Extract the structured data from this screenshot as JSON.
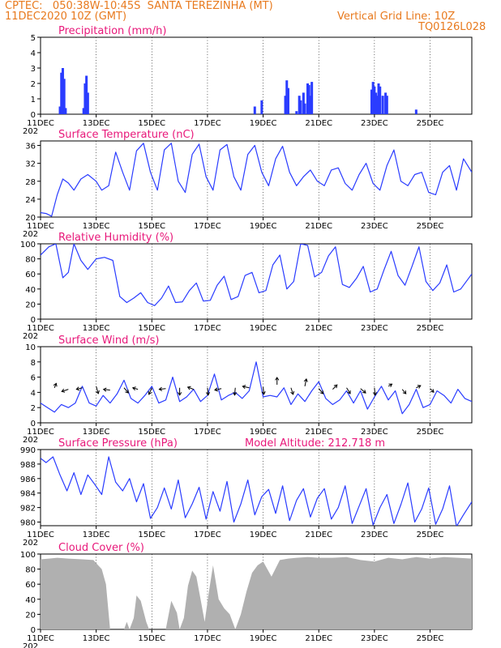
{
  "header": {
    "left_line1": "CPTEC:   050:38W-10:45S  SANTA TEREZINHA (MT)",
    "left_line2": "11DEC2020 10Z (GMT)",
    "right_line1": "Vertical Grid Line: 10Z",
    "right_line2": "TQ0126L028"
  },
  "colors": {
    "header": "#e87a1e",
    "title": "#e8187a",
    "series": "#2a3cff",
    "cloud": "#b0b0b0"
  },
  "x_axis": {
    "start_day": 11,
    "end_day": 26.5,
    "tick_days": [
      11,
      13,
      15,
      17,
      19,
      21,
      23,
      25
    ],
    "tick_labels": [
      "11DEC",
      "13DEC",
      "15DEC",
      "17DEC",
      "19DEC",
      "21DEC",
      "23DEC",
      "25DEC"
    ],
    "year_label": "202"
  },
  "chart_data": [
    {
      "type": "bar",
      "title": "Precipitation (mm/h)",
      "ylim": [
        0,
        5
      ],
      "yticks": [
        0,
        1,
        2,
        3,
        4,
        5
      ],
      "x_units": "day of December 2020",
      "x": [
        11.7,
        11.75,
        11.8,
        11.85,
        11.9,
        12.55,
        12.6,
        12.65,
        12.7,
        18.7,
        18.95,
        19.8,
        19.85,
        19.9,
        20.2,
        20.3,
        20.35,
        20.45,
        20.5,
        20.6,
        20.65,
        20.7,
        20.75,
        22.9,
        22.95,
        23.0,
        23.05,
        23.1,
        23.15,
        23.2,
        23.3,
        23.4,
        23.45,
        24.5
      ],
      "values": [
        0.5,
        2.7,
        3.0,
        2.3,
        0.4,
        0.4,
        2.0,
        2.5,
        1.4,
        0.5,
        0.9,
        1.2,
        2.2,
        1.7,
        0.2,
        1.2,
        0.9,
        1.4,
        0.7,
        2.0,
        1.9,
        1.2,
        2.1,
        1.6,
        2.1,
        1.8,
        1.4,
        1.2,
        2.0,
        1.8,
        1.2,
        1.4,
        1.2,
        0.3
      ]
    },
    {
      "type": "line",
      "title": "Surface Temperature (nC)",
      "ylim": [
        20,
        37
      ],
      "yticks": [
        20,
        24,
        28,
        32,
        36
      ],
      "x_units": "day of December 2020",
      "x": [
        11,
        11.2,
        11.4,
        11.6,
        11.8,
        12.0,
        12.2,
        12.45,
        12.7,
        13.0,
        13.2,
        13.45,
        13.7,
        13.95,
        14.2,
        14.45,
        14.7,
        14.95,
        15.2,
        15.45,
        15.7,
        15.95,
        16.2,
        16.45,
        16.7,
        16.95,
        17.2,
        17.45,
        17.7,
        17.95,
        18.2,
        18.45,
        18.7,
        18.95,
        19.2,
        19.45,
        19.7,
        19.95,
        20.2,
        20.45,
        20.7,
        20.95,
        21.2,
        21.45,
        21.7,
        21.95,
        22.2,
        22.45,
        22.7,
        22.95,
        23.2,
        23.45,
        23.7,
        23.95,
        24.2,
        24.45,
        24.7,
        24.95,
        25.2,
        25.45,
        25.7,
        25.95,
        26.2,
        26.5
      ],
      "values": [
        21,
        20.8,
        20.2,
        25,
        28.5,
        27.6,
        26,
        28.5,
        29.5,
        28,
        26,
        27,
        34.5,
        30,
        26,
        34.8,
        36.5,
        30,
        26,
        35,
        36.5,
        28,
        25.5,
        34,
        36.3,
        29,
        26,
        35,
        36.2,
        29,
        26,
        34,
        36,
        30,
        27,
        33,
        35.8,
        30,
        27,
        29,
        30.5,
        28,
        27,
        30.5,
        31,
        27.5,
        26,
        29.5,
        32,
        27.5,
        26,
        31.5,
        35,
        28,
        27,
        29.5,
        30,
        25.5,
        25,
        30,
        31.5,
        26,
        33,
        30
      ]
    },
    {
      "type": "line",
      "title": "Relative Humidity (%)",
      "ylim": [
        0,
        100
      ],
      "yticks": [
        0,
        20,
        40,
        60,
        80,
        100
      ],
      "x_units": "day of December 2020",
      "x": [
        11,
        11.3,
        11.55,
        11.8,
        12.0,
        12.2,
        12.45,
        12.7,
        13.0,
        13.3,
        13.6,
        13.85,
        14.1,
        14.35,
        14.6,
        14.85,
        15.1,
        15.35,
        15.6,
        15.85,
        16.1,
        16.35,
        16.6,
        16.85,
        17.1,
        17.35,
        17.6,
        17.85,
        18.1,
        18.35,
        18.6,
        18.85,
        19.1,
        19.35,
        19.6,
        19.85,
        20.1,
        20.35,
        20.6,
        20.85,
        21.1,
        21.35,
        21.6,
        21.85,
        22.1,
        22.35,
        22.6,
        22.85,
        23.1,
        23.35,
        23.6,
        23.85,
        24.1,
        24.35,
        24.6,
        24.85,
        25.1,
        25.35,
        25.6,
        25.85,
        26.1,
        26.5
      ],
      "values": [
        85,
        96,
        100,
        55,
        62,
        100,
        78,
        66,
        80,
        82,
        78,
        30,
        22,
        28,
        35,
        22,
        18,
        28,
        44,
        22,
        23,
        38,
        48,
        24,
        25,
        45,
        57,
        26,
        30,
        58,
        62,
        35,
        38,
        72,
        85,
        40,
        50,
        100,
        98,
        56,
        62,
        84,
        96,
        46,
        42,
        54,
        70,
        36,
        40,
        66,
        90,
        58,
        45,
        70,
        96,
        50,
        38,
        48,
        72,
        36,
        40,
        60
      ]
    },
    {
      "type": "line",
      "title": "Surface Wind (m/s)",
      "ylim": [
        0,
        10
      ],
      "yticks": [
        0,
        2,
        4,
        6,
        8,
        10
      ],
      "x_units": "day of December 2020",
      "x": [
        11,
        11.25,
        11.5,
        11.75,
        12.0,
        12.25,
        12.5,
        12.75,
        13.0,
        13.25,
        13.5,
        13.75,
        14.0,
        14.25,
        14.5,
        14.75,
        15.0,
        15.25,
        15.5,
        15.75,
        16.0,
        16.25,
        16.5,
        16.75,
        17.0,
        17.25,
        17.5,
        17.75,
        18.0,
        18.25,
        18.5,
        18.75,
        19.0,
        19.25,
        19.5,
        19.75,
        20.0,
        20.25,
        20.5,
        20.75,
        21.0,
        21.25,
        21.5,
        21.75,
        22.0,
        22.25,
        22.5,
        22.75,
        23.0,
        23.25,
        23.5,
        23.75,
        24.0,
        24.25,
        24.5,
        24.75,
        25.0,
        25.25,
        25.5,
        25.75,
        26.0,
        26.25,
        26.5
      ],
      "values": [
        2.6,
        2.0,
        1.4,
        2.4,
        2.0,
        2.6,
        4.8,
        2.6,
        2.2,
        3.6,
        2.6,
        3.8,
        5.6,
        3.2,
        2.6,
        3.6,
        4.8,
        2.6,
        3.0,
        6.0,
        2.8,
        3.4,
        4.4,
        2.8,
        3.6,
        6.4,
        3.0,
        3.6,
        4.0,
        3.2,
        4.2,
        8.0,
        3.4,
        3.6,
        3.4,
        4.6,
        2.4,
        3.8,
        2.8,
        4.2,
        5.4,
        3.2,
        2.4,
        3.0,
        4.2,
        2.6,
        4.2,
        1.8,
        3.4,
        4.8,
        3.0,
        4.2,
        1.2,
        2.4,
        4.4,
        2.0,
        2.4,
        4.2,
        3.6,
        2.6,
        4.4,
        3.2,
        2.8
      ],
      "vectors": [
        {
          "x": 11.5,
          "u": 0.25,
          "v": 0.6,
          "y": 4.6
        },
        {
          "x": 12.0,
          "u": -0.9,
          "v": -0.3,
          "y": 4.4
        },
        {
          "x": 12.5,
          "u": -0.8,
          "v": -0.2,
          "y": 4.6
        },
        {
          "x": 13.0,
          "u": 0.3,
          "v": -1.0,
          "y": 4.8
        },
        {
          "x": 13.5,
          "u": -0.9,
          "v": 0.1,
          "y": 4.3
        },
        {
          "x": 14.0,
          "u": 0.6,
          "v": -0.7,
          "y": 4.6
        },
        {
          "x": 14.5,
          "u": -0.7,
          "v": 0.2,
          "y": 4.4
        },
        {
          "x": 15.0,
          "u": -0.4,
          "v": -0.9,
          "y": 4.6
        },
        {
          "x": 15.5,
          "u": -0.9,
          "v": -0.1,
          "y": 4.5
        },
        {
          "x": 16.0,
          "u": 0.0,
          "v": -1.0,
          "y": 4.6
        },
        {
          "x": 16.5,
          "u": -0.8,
          "v": 0.3,
          "y": 4.4
        },
        {
          "x": 17.0,
          "u": 0.1,
          "v": -1.0,
          "y": 4.6
        },
        {
          "x": 17.5,
          "u": -0.9,
          "v": -0.2,
          "y": 4.5
        },
        {
          "x": 18.0,
          "u": -0.1,
          "v": -1.0,
          "y": 4.6
        },
        {
          "x": 18.5,
          "u": -0.9,
          "v": 0.2,
          "y": 4.6
        },
        {
          "x": 19.0,
          "u": 0.1,
          "v": -1.0,
          "y": 4.7
        },
        {
          "x": 19.5,
          "u": 0.0,
          "v": 1.0,
          "y": 5.0
        },
        {
          "x": 20.0,
          "u": 0.3,
          "v": -0.9,
          "y": 4.6
        },
        {
          "x": 20.5,
          "u": 0.2,
          "v": 1.0,
          "y": 4.8
        },
        {
          "x": 21.0,
          "u": 0.6,
          "v": -0.7,
          "y": 4.5
        },
        {
          "x": 21.5,
          "u": 0.6,
          "v": 0.6,
          "y": 4.4
        },
        {
          "x": 22.0,
          "u": 0.5,
          "v": -0.8,
          "y": 4.6
        },
        {
          "x": 22.5,
          "u": 0.7,
          "v": -0.6,
          "y": 4.5
        },
        {
          "x": 23.0,
          "u": 0.1,
          "v": -1.0,
          "y": 4.6
        },
        {
          "x": 23.5,
          "u": 0.5,
          "v": 0.3,
          "y": 4.8
        },
        {
          "x": 24.0,
          "u": 0.5,
          "v": -0.6,
          "y": 4.4
        },
        {
          "x": 24.5,
          "u": 0.6,
          "v": 0.3,
          "y": 4.6
        },
        {
          "x": 25.0,
          "u": 0.5,
          "v": -0.5,
          "y": 4.5
        }
      ]
    },
    {
      "type": "line",
      "title": "Surface Pressure (hPa)",
      "subtitle": "Model Altitude: 212.718 m",
      "ylim": [
        979.5,
        990
      ],
      "yticks": [
        980,
        982,
        984,
        986,
        988,
        990
      ],
      "x_units": "day of December 2020",
      "x": [
        11,
        11.2,
        11.45,
        11.7,
        11.95,
        12.2,
        12.45,
        12.7,
        12.95,
        13.2,
        13.45,
        13.7,
        13.95,
        14.2,
        14.45,
        14.7,
        14.95,
        15.2,
        15.45,
        15.7,
        15.95,
        16.2,
        16.45,
        16.7,
        16.95,
        17.2,
        17.45,
        17.7,
        17.95,
        18.2,
        18.45,
        18.7,
        18.95,
        19.2,
        19.45,
        19.7,
        19.95,
        20.2,
        20.45,
        20.7,
        20.95,
        21.2,
        21.45,
        21.7,
        21.95,
        22.2,
        22.45,
        22.7,
        22.95,
        23.2,
        23.45,
        23.7,
        23.95,
        24.2,
        24.45,
        24.7,
        24.95,
        25.2,
        25.45,
        25.7,
        25.95,
        26.2,
        26.5
      ],
      "values": [
        988.8,
        988.2,
        989.0,
        986.5,
        984.3,
        986.8,
        983.8,
        986.5,
        985.2,
        983.8,
        989.0,
        985.5,
        984.3,
        986.0,
        982.8,
        985.3,
        980.5,
        982.0,
        984.7,
        981.8,
        985.8,
        980.6,
        982.5,
        984.8,
        980.4,
        984.2,
        981.5,
        985.6,
        980.0,
        982.5,
        985.8,
        981.0,
        983.5,
        984.5,
        981.2,
        985.0,
        980.2,
        983.0,
        984.6,
        980.7,
        983.3,
        984.6,
        980.4,
        982.0,
        985.0,
        979.8,
        982.2,
        984.6,
        979.6,
        982.0,
        983.8,
        979.8,
        982.4,
        985.4,
        980.0,
        981.8,
        984.7,
        979.7,
        981.8,
        985.0,
        979.4,
        981.0,
        982.8
      ]
    },
    {
      "type": "area",
      "title": "Cloud Cover (%)",
      "ylim": [
        0,
        100
      ],
      "yticks": [
        0,
        20,
        40,
        60,
        80,
        100
      ],
      "x_units": "day of December 2020",
      "x": [
        11,
        11.3,
        11.6,
        12.0,
        12.5,
        12.9,
        13.0,
        13.2,
        13.35,
        13.45,
        13.5,
        13.6,
        13.75,
        13.9,
        14.0,
        14.1,
        14.2,
        14.35,
        14.45,
        14.6,
        14.8,
        14.9,
        15.05,
        15.2,
        15.35,
        15.5,
        15.7,
        15.9,
        16.0,
        16.15,
        16.3,
        16.45,
        16.6,
        16.75,
        16.9,
        17.05,
        17.2,
        17.4,
        17.6,
        17.8,
        18.0,
        18.2,
        18.4,
        18.6,
        18.8,
        19.0,
        19.3,
        19.6,
        19.9,
        20.2,
        20.6,
        21.0,
        21.5,
        22.0,
        22.5,
        23.0,
        23.5,
        24.0,
        24.5,
        25.0,
        25.5,
        26.0,
        26.5
      ],
      "values": [
        93,
        94,
        95,
        94,
        93,
        92,
        88,
        80,
        60,
        20,
        0,
        0,
        0,
        0,
        0,
        10,
        0,
        15,
        45,
        38,
        10,
        0,
        0,
        0,
        0,
        0,
        38,
        22,
        0,
        15,
        58,
        78,
        70,
        40,
        10,
        50,
        85,
        40,
        28,
        20,
        0,
        20,
        50,
        75,
        85,
        90,
        70,
        92,
        94,
        95,
        96,
        95,
        95,
        96,
        92,
        90,
        95,
        93,
        96,
        94,
        96,
        95,
        94
      ]
    }
  ]
}
